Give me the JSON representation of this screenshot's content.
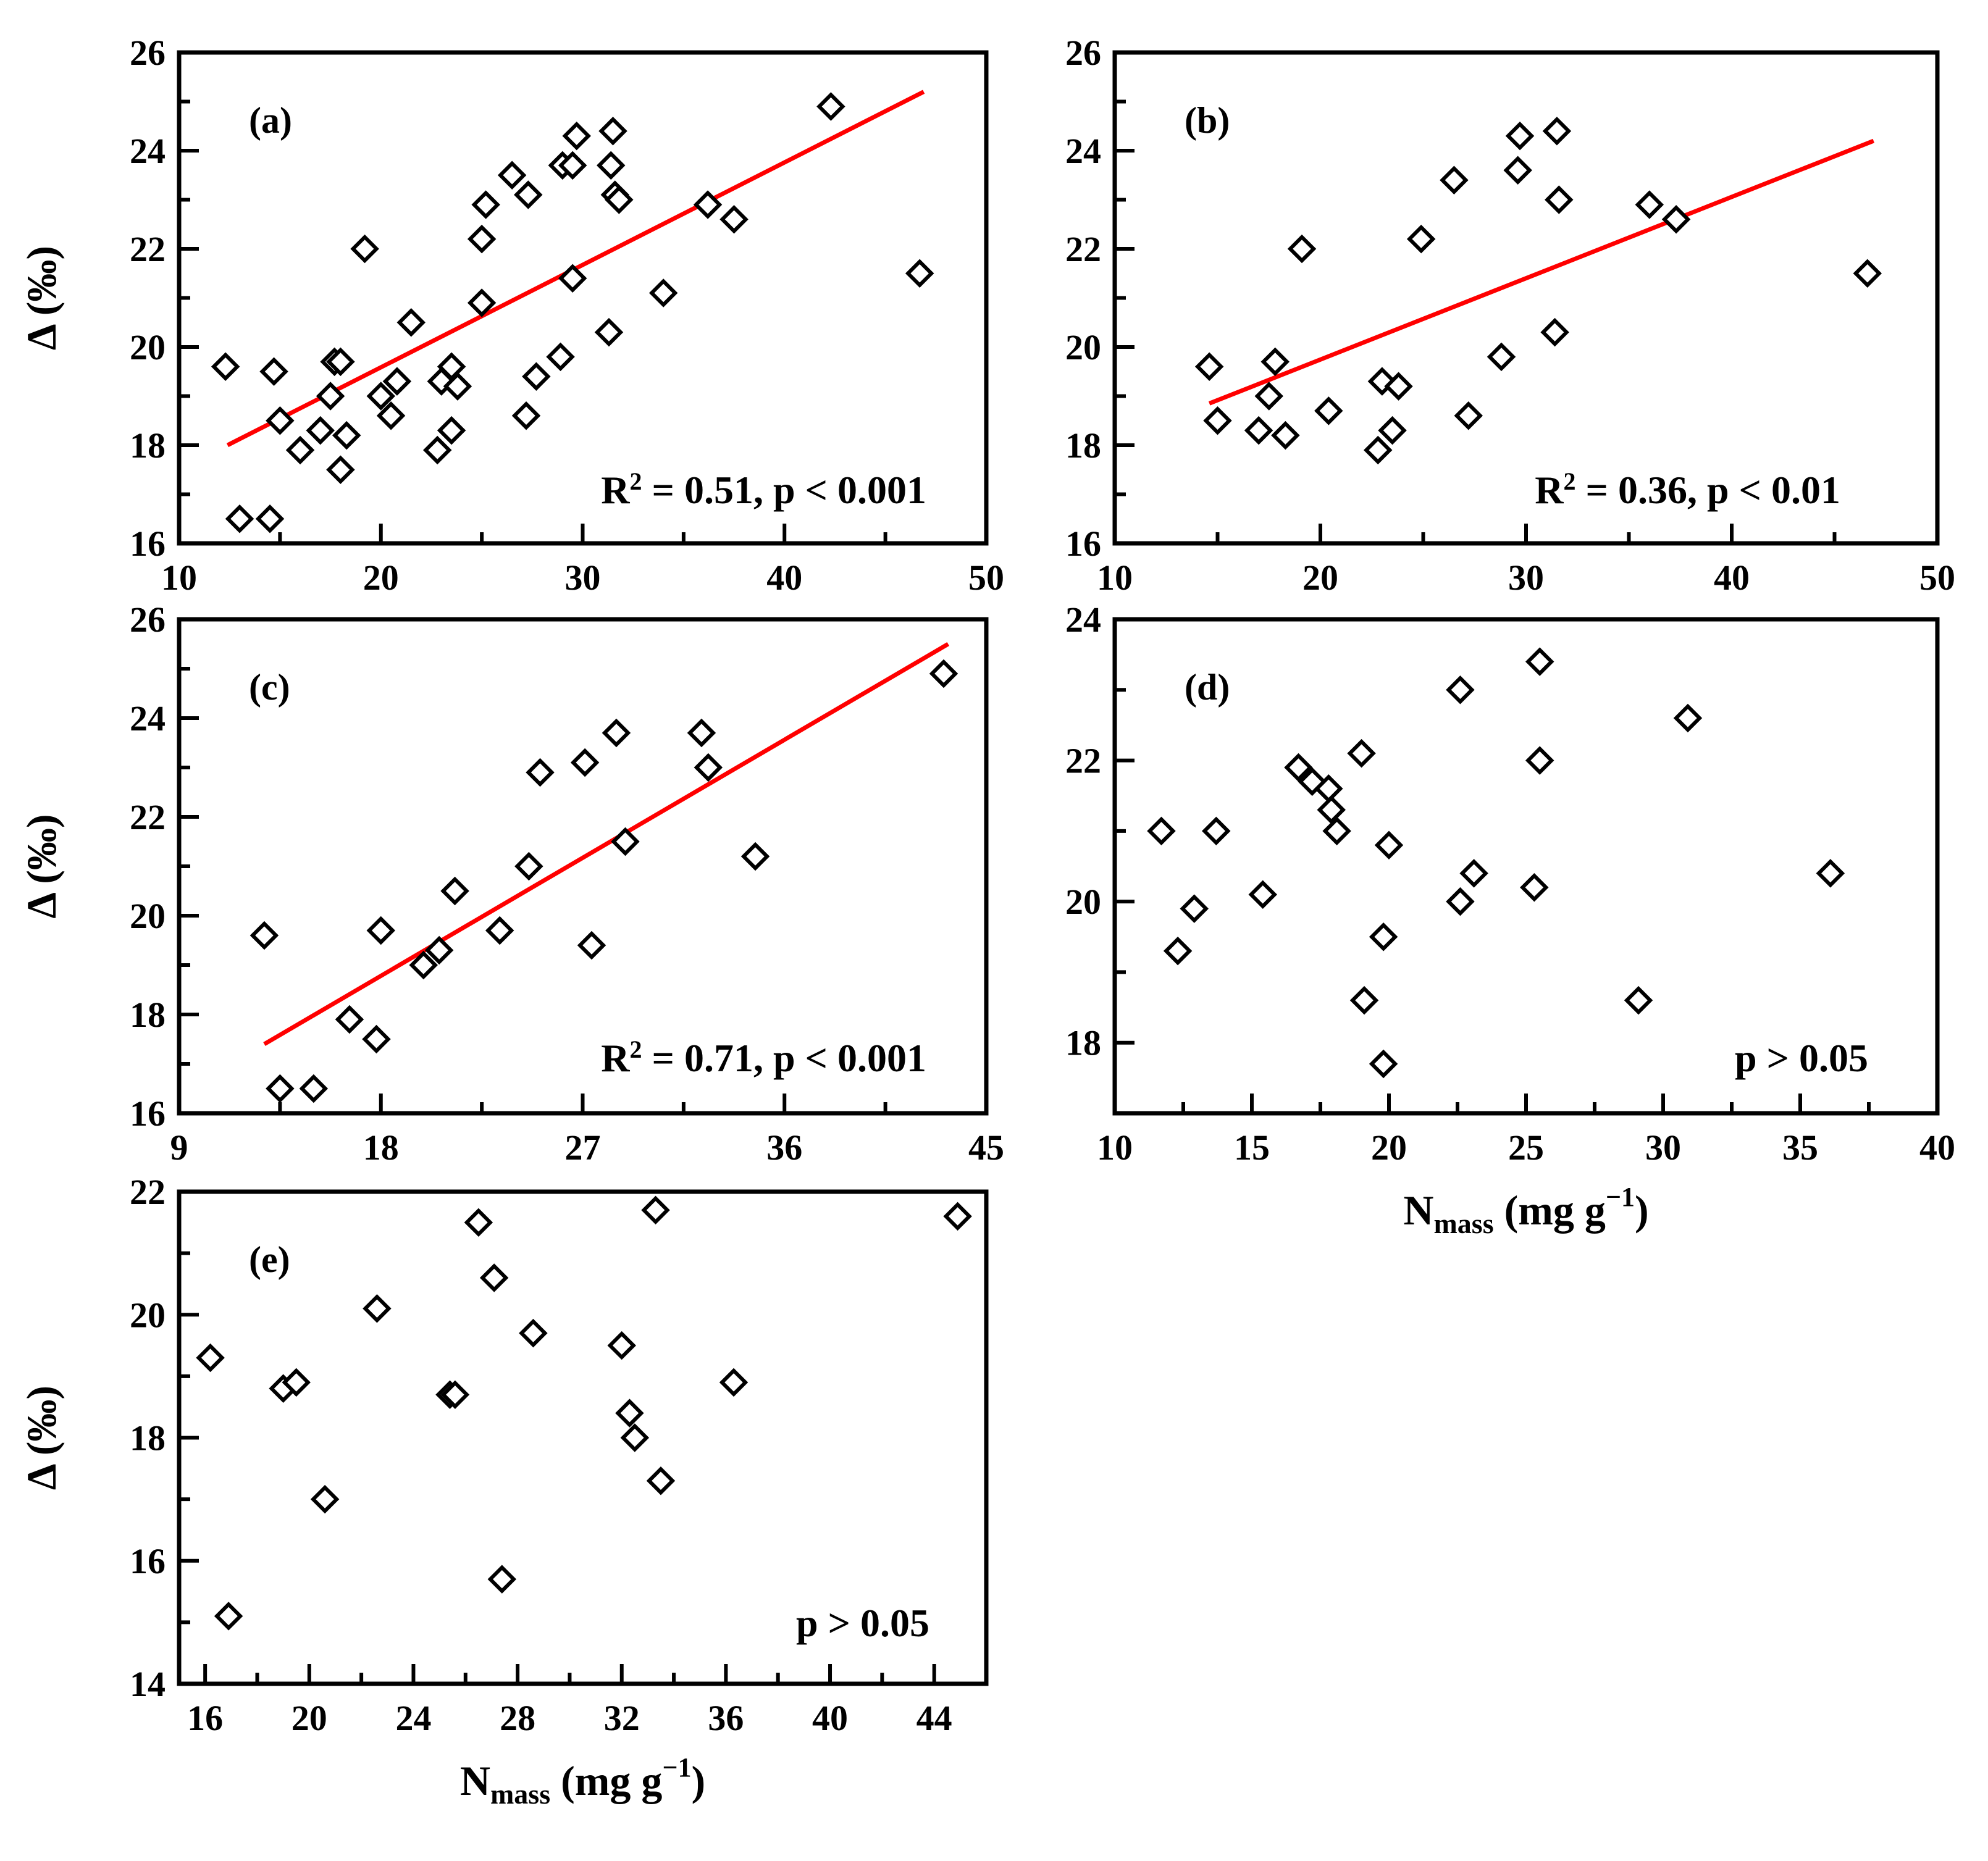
{
  "figure": {
    "xlabel_main": "N",
    "xlabel_sub": "mass",
    "xlabel_unit_open": " (mg g",
    "xlabel_unit_sup": "−1",
    "xlabel_unit_close": ")",
    "ylabel": "Δ (‰)",
    "fit_color": "#ff0000",
    "marker_color": "#000000"
  },
  "chart_data": [
    {
      "id": "a",
      "type": "scatter",
      "panel_label": "(a)",
      "xlim": [
        10,
        50
      ],
      "ylim": [
        16,
        26
      ],
      "xticks": [
        10,
        20,
        30,
        40,
        50
      ],
      "yticks": [
        16,
        18,
        20,
        22,
        24,
        26
      ],
      "show_xticklabels": true,
      "show_xlabel": false,
      "ylabel": "Δ (‰)",
      "annotation": {
        "r2_prefix": "R",
        "r2_sup": "2",
        "text": " = 0.51, p < 0.001"
      },
      "fit_line": {
        "x": [
          12.4,
          46.9
        ],
        "y": [
          18.0,
          25.2
        ]
      },
      "points": [
        [
          12.3,
          19.6
        ],
        [
          13.0,
          16.5
        ],
        [
          14.5,
          16.5
        ],
        [
          14.7,
          19.5
        ],
        [
          15.0,
          18.5
        ],
        [
          16.0,
          17.9
        ],
        [
          17.0,
          18.3
        ],
        [
          17.5,
          19.0
        ],
        [
          17.7,
          19.7
        ],
        [
          18.0,
          19.7
        ],
        [
          18.0,
          17.5
        ],
        [
          18.3,
          18.2
        ],
        [
          19.2,
          22.0
        ],
        [
          20.0,
          19.0
        ],
        [
          20.5,
          18.6
        ],
        [
          20.8,
          19.3
        ],
        [
          21.5,
          20.5
        ],
        [
          22.8,
          17.9
        ],
        [
          23.0,
          19.3
        ],
        [
          23.5,
          19.6
        ],
        [
          23.5,
          18.3
        ],
        [
          23.8,
          19.2
        ],
        [
          25.0,
          22.2
        ],
        [
          25.0,
          20.9
        ],
        [
          25.2,
          22.9
        ],
        [
          26.5,
          23.5
        ],
        [
          27.2,
          18.6
        ],
        [
          27.3,
          23.1
        ],
        [
          27.7,
          19.4
        ],
        [
          28.9,
          19.8
        ],
        [
          29.0,
          23.7
        ],
        [
          29.5,
          23.7
        ],
        [
          29.5,
          21.4
        ],
        [
          29.7,
          24.3
        ],
        [
          31.3,
          20.3
        ],
        [
          31.4,
          23.7
        ],
        [
          31.5,
          24.4
        ],
        [
          31.6,
          23.1
        ],
        [
          31.8,
          23.0
        ],
        [
          34.0,
          21.1
        ],
        [
          36.2,
          22.9
        ],
        [
          37.5,
          22.6
        ],
        [
          42.3,
          24.9
        ],
        [
          46.7,
          21.5
        ]
      ]
    },
    {
      "id": "b",
      "type": "scatter",
      "panel_label": "(b)",
      "xlim": [
        10,
        50
      ],
      "ylim": [
        16,
        26
      ],
      "xticks": [
        10,
        20,
        30,
        40,
        50
      ],
      "yticks": [
        16,
        18,
        20,
        22,
        24,
        26
      ],
      "show_xticklabels": true,
      "show_xlabel": false,
      "ylabel": "",
      "annotation": {
        "r2_prefix": "R",
        "r2_sup": "2",
        "text": " = 0.36, p < 0.01"
      },
      "fit_line": {
        "x": [
          14.6,
          46.9
        ],
        "y": [
          18.85,
          24.2
        ]
      },
      "points": [
        [
          14.6,
          19.6
        ],
        [
          15.0,
          18.5
        ],
        [
          17.0,
          18.3
        ],
        [
          17.5,
          19.0
        ],
        [
          17.8,
          19.7
        ],
        [
          18.3,
          18.2
        ],
        [
          19.1,
          22.0
        ],
        [
          20.4,
          18.7
        ],
        [
          22.8,
          17.9
        ],
        [
          23.0,
          19.3
        ],
        [
          23.5,
          18.3
        ],
        [
          23.8,
          19.2
        ],
        [
          24.9,
          22.2
        ],
        [
          26.5,
          23.4
        ],
        [
          27.2,
          18.6
        ],
        [
          28.8,
          19.8
        ],
        [
          29.6,
          23.6
        ],
        [
          29.7,
          24.3
        ],
        [
          31.4,
          20.3
        ],
        [
          31.5,
          24.4
        ],
        [
          31.6,
          23.0
        ],
        [
          36.0,
          22.9
        ],
        [
          37.3,
          22.6
        ],
        [
          46.6,
          21.5
        ]
      ]
    },
    {
      "id": "c",
      "type": "scatter",
      "panel_label": "(c)",
      "xlim": [
        9,
        45
      ],
      "ylim": [
        16,
        26
      ],
      "xticks": [
        9,
        18,
        27,
        36,
        45
      ],
      "yticks": [
        16,
        18,
        20,
        22,
        24,
        26
      ],
      "show_xticklabels": true,
      "show_xlabel": false,
      "ylabel": "Δ (‰)",
      "annotation": {
        "r2_prefix": "R",
        "r2_sup": "2",
        "text": " = 0.71, p < 0.001"
      },
      "fit_line": {
        "x": [
          12.8,
          43.3
        ],
        "y": [
          17.4,
          25.5
        ]
      },
      "points": [
        [
          12.8,
          19.6
        ],
        [
          13.5,
          16.5
        ],
        [
          15.0,
          16.5
        ],
        [
          16.6,
          17.9
        ],
        [
          17.8,
          17.5
        ],
        [
          18.0,
          19.7
        ],
        [
          19.9,
          19.0
        ],
        [
          20.6,
          19.3
        ],
        [
          21.3,
          20.5
        ],
        [
          23.3,
          19.7
        ],
        [
          24.6,
          21.0
        ],
        [
          25.1,
          22.9
        ],
        [
          27.1,
          23.1
        ],
        [
          27.4,
          19.4
        ],
        [
          28.5,
          23.7
        ],
        [
          28.9,
          21.5
        ],
        [
          32.3,
          23.7
        ],
        [
          32.6,
          23.0
        ],
        [
          34.7,
          21.2
        ],
        [
          43.1,
          24.9
        ]
      ]
    },
    {
      "id": "d",
      "type": "scatter",
      "panel_label": "(d)",
      "xlim": [
        10,
        40
      ],
      "ylim": [
        17,
        24
      ],
      "xticks": [
        10,
        15,
        20,
        25,
        30,
        35,
        40
      ],
      "yticks": [
        18,
        20,
        22,
        24
      ],
      "show_xticklabels": true,
      "show_xlabel": true,
      "ylabel": "",
      "annotation": {
        "r2_prefix": "",
        "r2_sup": "",
        "text": "p > 0.05"
      },
      "fit_line": null,
      "points": [
        [
          11.7,
          21.0
        ],
        [
          12.3,
          19.3
        ],
        [
          12.9,
          19.9
        ],
        [
          13.7,
          21.0
        ],
        [
          15.4,
          20.1
        ],
        [
          16.7,
          21.9
        ],
        [
          17.2,
          21.7
        ],
        [
          17.8,
          21.6
        ],
        [
          17.9,
          21.3
        ],
        [
          18.1,
          21.0
        ],
        [
          19.0,
          22.1
        ],
        [
          19.1,
          18.6
        ],
        [
          19.8,
          17.7
        ],
        [
          19.8,
          19.5
        ],
        [
          20.0,
          20.8
        ],
        [
          22.6,
          20.0
        ],
        [
          22.6,
          23.0
        ],
        [
          23.1,
          20.4
        ],
        [
          25.3,
          20.2
        ],
        [
          25.5,
          23.4
        ],
        [
          25.5,
          22.0
        ],
        [
          29.1,
          18.6
        ],
        [
          30.9,
          22.6
        ],
        [
          36.1,
          20.4
        ]
      ]
    },
    {
      "id": "e",
      "type": "scatter",
      "panel_label": "(e)",
      "xlim": [
        15,
        46
      ],
      "ylim": [
        14,
        22
      ],
      "xticks": [
        16,
        20,
        24,
        28,
        32,
        36,
        40,
        44
      ],
      "yticks": [
        14,
        16,
        18,
        20,
        22
      ],
      "show_xticklabels": true,
      "show_xlabel": true,
      "ylabel": "Δ (‰)",
      "annotation": {
        "r2_prefix": "",
        "r2_sup": "",
        "text": "p > 0.05"
      },
      "fit_line": null,
      "points": [
        [
          16.2,
          19.3
        ],
        [
          16.9,
          15.1
        ],
        [
          19.0,
          18.8
        ],
        [
          19.5,
          18.9
        ],
        [
          20.6,
          17.0
        ],
        [
          22.6,
          20.1
        ],
        [
          25.4,
          18.7
        ],
        [
          25.6,
          18.7
        ],
        [
          26.5,
          21.5
        ],
        [
          27.1,
          20.6
        ],
        [
          27.4,
          15.7
        ],
        [
          28.6,
          19.7
        ],
        [
          32.0,
          19.5
        ],
        [
          32.3,
          18.4
        ],
        [
          32.5,
          18.0
        ],
        [
          33.3,
          21.7
        ],
        [
          33.5,
          17.3
        ],
        [
          36.3,
          18.9
        ],
        [
          44.9,
          21.6
        ]
      ]
    }
  ]
}
